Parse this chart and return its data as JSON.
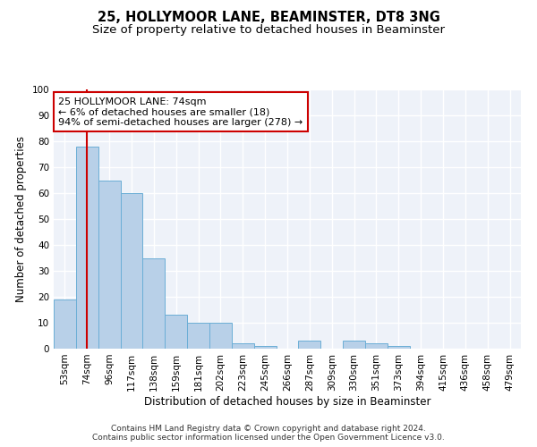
{
  "title": "25, HOLLYMOOR LANE, BEAMINSTER, DT8 3NG",
  "subtitle": "Size of property relative to detached houses in Beaminster",
  "xlabel": "Distribution of detached houses by size in Beaminster",
  "ylabel": "Number of detached properties",
  "footer_line1": "Contains HM Land Registry data © Crown copyright and database right 2024.",
  "footer_line2": "Contains public sector information licensed under the Open Government Licence v3.0.",
  "categories": [
    "53sqm",
    "74sqm",
    "96sqm",
    "117sqm",
    "138sqm",
    "159sqm",
    "181sqm",
    "202sqm",
    "223sqm",
    "245sqm",
    "266sqm",
    "287sqm",
    "309sqm",
    "330sqm",
    "351sqm",
    "373sqm",
    "394sqm",
    "415sqm",
    "436sqm",
    "458sqm",
    "479sqm"
  ],
  "values": [
    19,
    78,
    65,
    60,
    35,
    13,
    10,
    10,
    2,
    1,
    0,
    3,
    0,
    3,
    2,
    1,
    0,
    0,
    0,
    0,
    0
  ],
  "bar_color": "#b8d0e8",
  "bar_edge_color": "#6baed6",
  "highlight_x": "74sqm",
  "highlight_line_color": "#cc0000",
  "annotation_line1": "25 HOLLYMOOR LANE: 74sqm",
  "annotation_line2": "← 6% of detached houses are smaller (18)",
  "annotation_line3": "94% of semi-detached houses are larger (278) →",
  "annotation_box_color": "#cc0000",
  "ylim": [
    0,
    100
  ],
  "yticks": [
    0,
    10,
    20,
    30,
    40,
    50,
    60,
    70,
    80,
    90,
    100
  ],
  "background_color": "#eef2f9",
  "grid_color": "#ffffff",
  "title_fontsize": 10.5,
  "subtitle_fontsize": 9.5,
  "ylabel_fontsize": 8.5,
  "xlabel_fontsize": 8.5,
  "tick_fontsize": 7.5,
  "annotation_fontsize": 8,
  "footer_fontsize": 6.5
}
